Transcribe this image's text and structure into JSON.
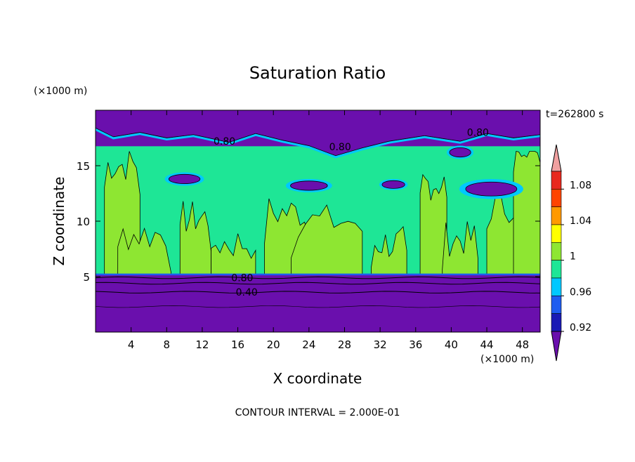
{
  "chart_data": {
    "type": "heatmap",
    "title": "Saturation Ratio",
    "xlabel": "X coordinate",
    "ylabel": "Z coordinate",
    "x_unit": "(×1000 m)",
    "y_unit": "(×1000 m)",
    "time_label": "t=262800 s",
    "footer": "CONTOUR INTERVAL = 2.000E-01",
    "xlim": [
      0,
      50
    ],
    "ylim": [
      0,
      20
    ],
    "x_ticks": [
      4,
      8,
      12,
      16,
      20,
      24,
      28,
      32,
      36,
      40,
      44,
      48
    ],
    "y_ticks": [
      5,
      10,
      15
    ],
    "colorbar": {
      "bins": [
        {
          "lower": null,
          "upper": 0.92,
          "color": "#6a0fad"
        },
        {
          "lower": 0.92,
          "upper": 0.94,
          "color": "#1a1ab5"
        },
        {
          "lower": 0.94,
          "upper": 0.96,
          "color": "#1e5cf0"
        },
        {
          "lower": 0.96,
          "upper": 0.98,
          "color": "#00c8ff"
        },
        {
          "lower": 0.98,
          "upper": 1.0,
          "color": "#1ee696"
        },
        {
          "lower": 1.0,
          "upper": 1.02,
          "color": "#8ee632"
        },
        {
          "lower": 1.02,
          "upper": 1.04,
          "color": "#ffff00"
        },
        {
          "lower": 1.04,
          "upper": 1.06,
          "color": "#ff9900"
        },
        {
          "lower": 1.06,
          "upper": 1.08,
          "color": "#ff4400"
        },
        {
          "lower": 1.08,
          "upper": 1.1,
          "color": "#e8281e"
        },
        {
          "lower": 1.1,
          "upper": null,
          "color": "#f0a0a0"
        }
      ],
      "tick_labels": [
        "0.92",
        "0.96",
        "1",
        "1.04",
        "1.08"
      ]
    },
    "regions": [
      {
        "zone": "z 0 to 5.2 km, all x",
        "value_class": "below 0.92"
      },
      {
        "zone": "z 5.2 to 16.5 km",
        "value_class": "0.98 to 1.02 (mixed)"
      },
      {
        "zone": "z 16.5 to 20 km, all x",
        "value_class": "below 0.92"
      }
    ],
    "contour_labels": [
      {
        "text": "0.80",
        "x": 14.5,
        "y": 17.2
      },
      {
        "text": "0.80",
        "x": 27.5,
        "y": 16.7
      },
      {
        "text": "0.80",
        "x": 43.0,
        "y": 18.0
      },
      {
        "text": "0.80",
        "x": 16.5,
        "y": 4.9
      },
      {
        "text": "0.40",
        "x": 17.0,
        "y": 3.6
      }
    ]
  }
}
